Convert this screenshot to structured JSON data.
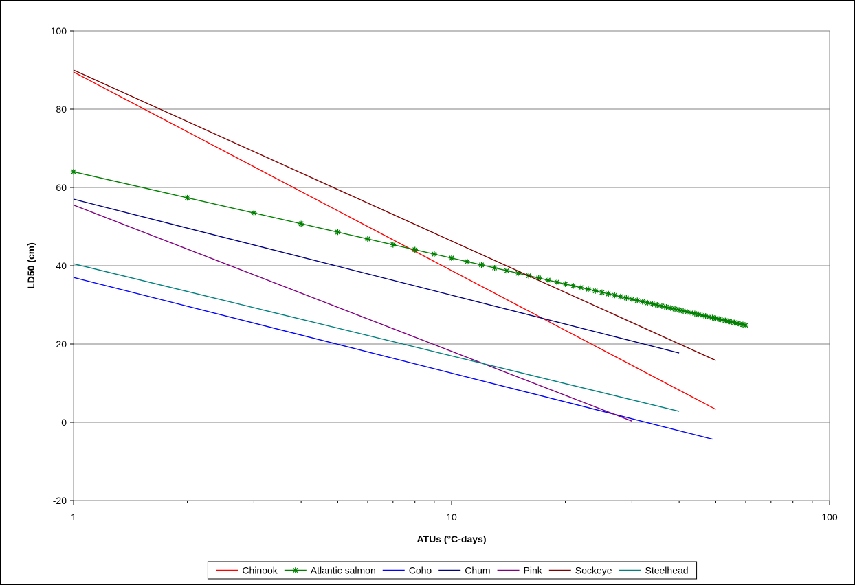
{
  "chart_data": {
    "type": "line",
    "xlabel": "ATUs (°C-days)",
    "ylabel": "LD50 (cm)",
    "x_scale": "log",
    "xlim": [
      1,
      100
    ],
    "ylim": [
      -20,
      100
    ],
    "x_ticks": [
      1,
      10,
      100
    ],
    "y_ticks": [
      -20,
      0,
      20,
      40,
      60,
      80,
      100
    ],
    "x_tick_labels": [
      "1",
      "10",
      "100"
    ],
    "y_tick_labels": [
      "-20",
      "0",
      "20",
      "40",
      "60",
      "80",
      "100"
    ],
    "grid": "horizontal major",
    "legend_position": "bottom",
    "series": [
      {
        "name": "Chinook",
        "color": "#ff0000",
        "marker": "none",
        "x": [
          1,
          50
        ],
        "y": [
          89.5,
          3.3
        ]
      },
      {
        "name": "Atlantic salmon",
        "color": "#008000",
        "marker": "asterisk",
        "x_start": 1,
        "x_end": 60,
        "x_step": 1,
        "y_at_1": 64.0,
        "y_at_60": 24.8
      },
      {
        "name": "Coho",
        "color": "#0000ff",
        "marker": "none",
        "x": [
          1,
          49
        ],
        "y": [
          37.0,
          -4.3
        ]
      },
      {
        "name": "Chum",
        "color": "#000080",
        "marker": "none",
        "x": [
          1,
          40
        ],
        "y": [
          57.0,
          17.7
        ]
      },
      {
        "name": "Pink",
        "color": "#800080",
        "marker": "none",
        "x": [
          1,
          30
        ],
        "y": [
          55.5,
          0.3
        ]
      },
      {
        "name": "Sockeye",
        "color": "#800000",
        "marker": "none",
        "x": [
          1,
          50
        ],
        "y": [
          90.0,
          15.8
        ]
      },
      {
        "name": "Steelhead",
        "color": "#008080",
        "marker": "none",
        "x": [
          1,
          40
        ],
        "y": [
          40.5,
          2.8
        ]
      }
    ]
  }
}
